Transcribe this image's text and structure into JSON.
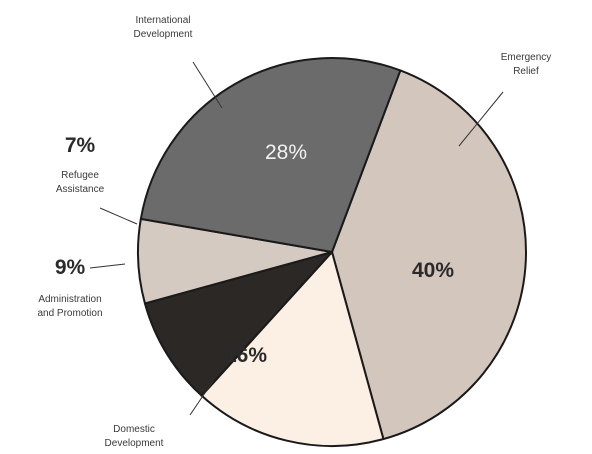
{
  "chart_data": {
    "type": "pie",
    "title": "",
    "slices": [
      {
        "label_lines": [
          "Emergency",
          "Relief"
        ],
        "value": 40,
        "value_label": "40%",
        "color": "#d3c6bd"
      },
      {
        "label_lines": [
          "Domestic",
          "Development"
        ],
        "value": 16,
        "value_label": "16%",
        "color": "#fbf0e3"
      },
      {
        "label_lines": [
          "Administration",
          "and Promotion"
        ],
        "value": 9,
        "value_label": "9%",
        "color": "#2b2826"
      },
      {
        "label_lines": [
          "Refugee",
          "Assistance"
        ],
        "value": 7,
        "value_label": "7%",
        "color": "#d5cac2"
      },
      {
        "label_lines": [
          "International",
          "Development"
        ],
        "value": 28,
        "value_label": "28%",
        "color": "#6b6b6b"
      }
    ]
  }
}
